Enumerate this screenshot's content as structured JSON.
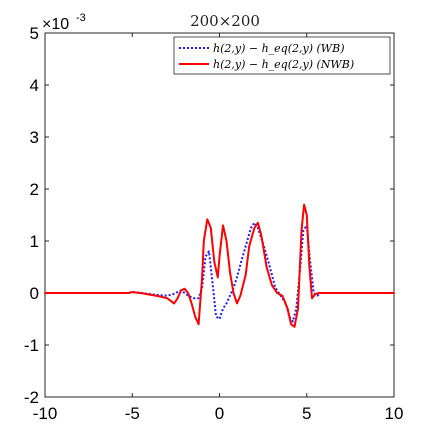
{
  "chart_data": {
    "type": "line",
    "title": "200×200",
    "y_exponent_base": "×10",
    "y_exponent_power": "-3",
    "xlim": [
      -10,
      10
    ],
    "ylim": [
      -2,
      5
    ],
    "x_ticks": [
      -10,
      -5,
      0,
      5,
      10
    ],
    "x_tick_labels": [
      "-10",
      "-5",
      "0",
      "5",
      "10"
    ],
    "y_ticks": [
      -2,
      -1,
      0,
      1,
      2,
      3,
      4,
      5
    ],
    "y_tick_labels": [
      "-2",
      "-1",
      "0",
      "1",
      "2",
      "3",
      "4",
      "5"
    ],
    "grid": false,
    "legend_position": "top-right",
    "series": [
      {
        "name": "h(2,y) − h_eq(2,y) (WB)",
        "color": "#1a1aff",
        "style": "dotted",
        "x": [
          -10,
          -5.2,
          -5.0,
          -4.8,
          -4.5,
          -4.0,
          -3.5,
          -3.0,
          -2.7,
          -2.4,
          -2.2,
          -2.0,
          -1.8,
          -1.5,
          -1.2,
          -1.0,
          -0.8,
          -0.6,
          -0.4,
          -0.2,
          0.0,
          0.2,
          0.4,
          0.6,
          0.8,
          1.0,
          1.2,
          1.5,
          1.8,
          2.0,
          2.2,
          2.5,
          2.8,
          3.0,
          3.2,
          3.5,
          3.8,
          4.0,
          4.2,
          4.4,
          4.6,
          4.8,
          5.0,
          5.2,
          5.4,
          5.6,
          5.8,
          6.0,
          10
        ],
        "y": [
          0,
          0,
          0.02,
          0.01,
          0.0,
          -0.02,
          -0.04,
          -0.05,
          -0.03,
          0.02,
          0.05,
          0.0,
          -0.05,
          -0.1,
          -0.1,
          0.1,
          0.7,
          0.8,
          0.2,
          -0.45,
          -0.5,
          -0.3,
          -0.2,
          -0.05,
          0.1,
          0.3,
          0.55,
          0.9,
          1.25,
          1.35,
          1.25,
          0.95,
          0.6,
          0.35,
          0.1,
          -0.05,
          -0.2,
          -0.45,
          -0.55,
          -0.3,
          0.4,
          1.2,
          1.3,
          0.6,
          0.0,
          -0.05,
          0.0,
          0.0,
          0
        ]
      },
      {
        "name": "h(2,y) − h_eq(2,y) (NWB)",
        "color": "#ff0000",
        "style": "solid",
        "x": [
          -10,
          -5.2,
          -5.0,
          -4.8,
          -4.5,
          -4.0,
          -3.5,
          -3.0,
          -2.8,
          -2.6,
          -2.4,
          -2.2,
          -2.0,
          -1.8,
          -1.6,
          -1.4,
          -1.2,
          -1.0,
          -0.9,
          -0.7,
          -0.5,
          -0.3,
          -0.1,
          0.0,
          0.2,
          0.4,
          0.6,
          0.8,
          1.0,
          1.2,
          1.5,
          1.7,
          2.0,
          2.2,
          2.4,
          2.7,
          3.0,
          3.3,
          3.6,
          3.9,
          4.1,
          4.3,
          4.5,
          4.7,
          4.85,
          5.0,
          5.15,
          5.3,
          5.5,
          5.7,
          6.0,
          10
        ],
        "y": [
          0,
          0,
          0.02,
          0.01,
          0.0,
          -0.03,
          -0.06,
          -0.1,
          -0.15,
          -0.2,
          -0.1,
          0.05,
          0.08,
          0.0,
          -0.2,
          -0.45,
          -0.6,
          0.3,
          1.0,
          1.42,
          1.25,
          0.6,
          0.3,
          0.7,
          1.3,
          1.0,
          0.4,
          0.0,
          -0.2,
          -0.05,
          0.35,
          0.9,
          1.25,
          1.35,
          1.1,
          0.5,
          0.15,
          0.0,
          -0.05,
          -0.3,
          -0.6,
          -0.65,
          -0.3,
          1.2,
          1.7,
          1.5,
          0.5,
          -0.1,
          -0.02,
          0.0,
          0.0,
          0
        ]
      }
    ]
  }
}
